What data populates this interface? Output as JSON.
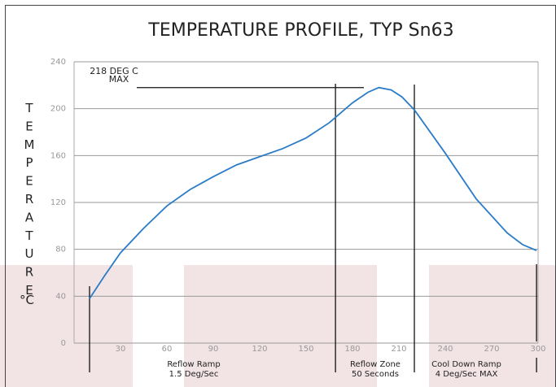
{
  "chart_data": {
    "type": "line",
    "title": "TEMPERATURE PROFILE, TYP Sn63",
    "y_label": "TEMPERATURE",
    "y_unit_label": "°C",
    "x": [
      10,
      20,
      30,
      45,
      60,
      75,
      90,
      105,
      120,
      135,
      150,
      165,
      180,
      190,
      197,
      205,
      212,
      220,
      240,
      260,
      280,
      290,
      299
    ],
    "series": [
      {
        "name": "Temperature",
        "color": "#2a7cc7",
        "values": [
          38,
          58,
          77,
          98,
          117,
          131,
          142,
          152,
          159,
          166,
          175,
          188,
          205,
          214,
          218,
          216,
          210,
          199,
          162,
          123,
          94,
          84,
          79
        ]
      }
    ],
    "xlim": [
      0,
      300
    ],
    "ylim": [
      0,
      240
    ],
    "xticks": [
      30,
      60,
      90,
      120,
      150,
      180,
      210,
      240,
      270,
      300
    ],
    "yticks": [
      0,
      40,
      80,
      120,
      160,
      200,
      240
    ],
    "grid": true,
    "max_line": 218,
    "max_label": [
      "218 DEG C",
      "MAX"
    ],
    "reference_lines_x": [
      10,
      169,
      220,
      299
    ],
    "zones": [
      {
        "lines": [
          "Reflow Ramp",
          "1.5 Deg/Sec"
        ]
      },
      {
        "lines": [
          "Reflow Zone",
          "50 Seconds"
        ]
      },
      {
        "lines": [
          "Cool Down Ramp",
          "4 Deg/Sec MAX"
        ]
      }
    ]
  }
}
